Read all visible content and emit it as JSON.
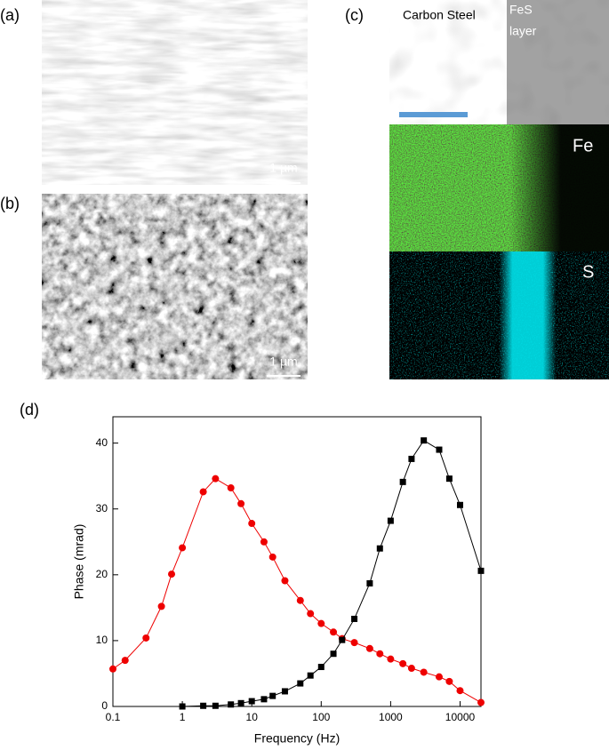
{
  "figure": {
    "panel_labels": [
      "(a)",
      "(b)",
      "(c)",
      "(d)"
    ],
    "scale_bars": [
      "1 µm",
      "1 µm"
    ],
    "map_texts": {
      "region_left": "Carbon Steel",
      "region_right_1": "FeS",
      "region_right_2": "layer",
      "map_fe": "Fe",
      "map_s": "S"
    }
  },
  "chart_data": {
    "type": "line",
    "x_label": "Frequency (Hz)",
    "y_label": "Phase (mrad)",
    "xscale": "log",
    "xlim": [
      0.1,
      20000
    ],
    "xticks": [
      0.1,
      1,
      10,
      100,
      1000,
      10000
    ],
    "ylim": [
      0,
      44
    ],
    "yticks": [
      0,
      10,
      20,
      30,
      40
    ],
    "series": [
      {
        "color": "#ee0000",
        "marker": "circle",
        "x": [
          0.1,
          0.15,
          0.3,
          0.5,
          0.7,
          1,
          2,
          3,
          5,
          7,
          10,
          15,
          20,
          30,
          50,
          70,
          100,
          150,
          200,
          300,
          500,
          700,
          1000,
          1500,
          2000,
          3000,
          5000,
          7000,
          10000,
          20000
        ],
        "values": [
          5.7,
          7,
          10.4,
          15.2,
          20.1,
          24.1,
          32.6,
          34.6,
          33.2,
          30.8,
          27.8,
          25,
          22.7,
          19.1,
          16.1,
          14.1,
          12.6,
          11.3,
          10.3,
          9.7,
          8.8,
          8,
          7.2,
          6.5,
          5.8,
          5.2,
          4.5,
          3.8,
          2.4,
          0.6
        ]
      },
      {
        "color": "#000000",
        "marker": "square",
        "x": [
          1,
          2,
          3,
          5,
          7,
          10,
          15,
          20,
          30,
          50,
          70,
          100,
          150,
          200,
          300,
          500,
          700,
          1000,
          1500,
          2000,
          3000,
          5000,
          7000,
          10000,
          20000
        ],
        "values": [
          0,
          0.1,
          0.1,
          0.3,
          0.5,
          0.8,
          1.1,
          1.6,
          2.3,
          3.5,
          4.7,
          6,
          8,
          10.1,
          13.3,
          18.7,
          24,
          28.2,
          34.1,
          37.6,
          40.4,
          39,
          34.6,
          30.6,
          20.6
        ]
      }
    ]
  }
}
